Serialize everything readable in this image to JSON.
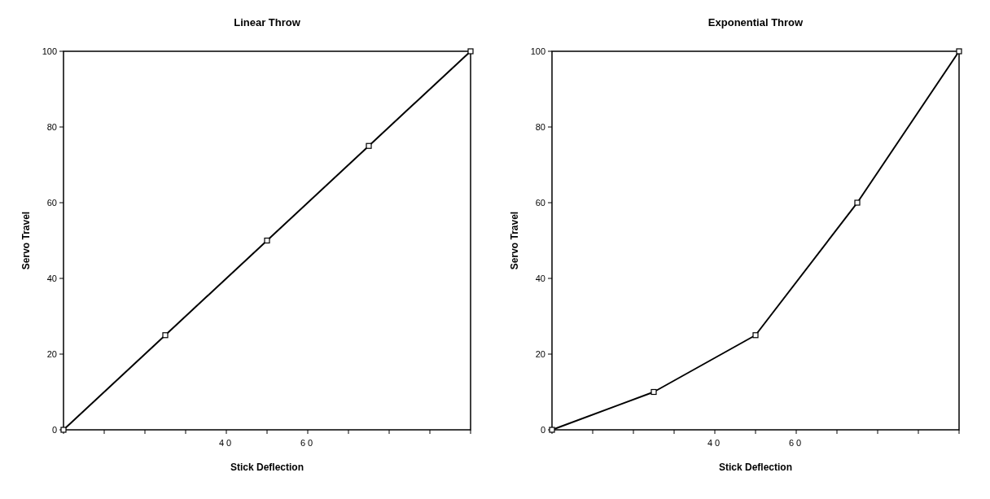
{
  "chart_data": [
    {
      "type": "line",
      "title": "Linear Throw",
      "xlabel": "Stick Deflection",
      "ylabel": "Servo Travel",
      "x": [
        0,
        25,
        50,
        75,
        100
      ],
      "values": [
        0,
        25,
        50,
        75,
        100
      ],
      "color": "#000000",
      "marker": "square",
      "grid": false,
      "xlim": [
        0,
        100
      ],
      "ylim": [
        0,
        100
      ],
      "xticks": [
        {
          "value": 0,
          "label": null
        },
        {
          "value": 10,
          "label": null
        },
        {
          "value": 20,
          "label": null
        },
        {
          "value": 30,
          "label": null
        },
        {
          "value": 40,
          "label": "40"
        },
        {
          "value": 50,
          "label": null
        },
        {
          "value": 60,
          "label": "60"
        },
        {
          "value": 70,
          "label": null
        },
        {
          "value": 80,
          "label": null
        },
        {
          "value": 90,
          "label": null
        },
        {
          "value": 100,
          "label": null
        }
      ],
      "yticks": [
        0,
        20,
        40,
        60,
        80,
        100
      ]
    },
    {
      "type": "line",
      "title": "Exponential Throw",
      "xlabel": "Stick Deflection",
      "ylabel": "Servo Travel",
      "x": [
        0,
        25,
        50,
        75,
        100
      ],
      "values": [
        0,
        10,
        25,
        60,
        100
      ],
      "color": "#000000",
      "marker": "square",
      "grid": false,
      "xlim": [
        0,
        100
      ],
      "ylim": [
        0,
        100
      ],
      "xticks": [
        {
          "value": 0,
          "label": null
        },
        {
          "value": 10,
          "label": null
        },
        {
          "value": 20,
          "label": null
        },
        {
          "value": 30,
          "label": null
        },
        {
          "value": 40,
          "label": "40"
        },
        {
          "value": 50,
          "label": null
        },
        {
          "value": 60,
          "label": "60"
        },
        {
          "value": 70,
          "label": null
        },
        {
          "value": 80,
          "label": null
        },
        {
          "value": 90,
          "label": null
        },
        {
          "value": 100,
          "label": null
        }
      ],
      "yticks": [
        0,
        20,
        40,
        60,
        80,
        100
      ]
    }
  ]
}
